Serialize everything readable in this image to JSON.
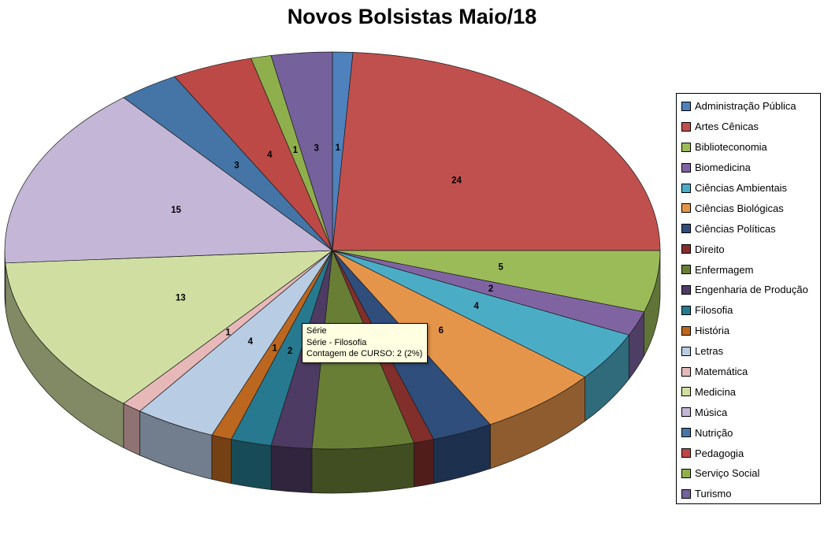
{
  "title": "Novos Bolsistas Maio/18",
  "chart_data": {
    "type": "pie",
    "title": "Novos Bolsistas Maio/18",
    "series_name": "Série",
    "value_label": "Contagem de CURSO",
    "total": 100,
    "legend_position": "right",
    "labels_shown": true,
    "style": "3d-pie",
    "slices": [
      {
        "label": "Administração Pública",
        "value": 1,
        "color": "#4F81BD"
      },
      {
        "label": "Artes Cênicas",
        "value": 24,
        "color": "#C0504D"
      },
      {
        "label": "Biblioteconomia",
        "value": 5,
        "color": "#9BBB59"
      },
      {
        "label": "Biomedicina",
        "value": 2,
        "color": "#8064A2"
      },
      {
        "label": "Ciências Ambientais",
        "value": 4,
        "color": "#4BACC6"
      },
      {
        "label": "Ciências Biológicas",
        "value": 6,
        "color": "#E5954A"
      },
      {
        "label": "Ciências Políticas",
        "value": 3,
        "color": "#2F4E7C"
      },
      {
        "label": "Direito",
        "value": 1,
        "color": "#822F2B"
      },
      {
        "label": "Enfermagem",
        "value": 5,
        "color": "#697E35"
      },
      {
        "label": "Engenharia de Produção",
        "value": 2,
        "color": "#4D3B63"
      },
      {
        "label": "Filosofia",
        "value": 2,
        "color": "#26798E"
      },
      {
        "label": "História",
        "value": 1,
        "color": "#BC671F"
      },
      {
        "label": "Letras",
        "value": 4,
        "color": "#B8CCE4"
      },
      {
        "label": "Matemática",
        "value": 1,
        "color": "#E6B9B8"
      },
      {
        "label": "Medicina",
        "value": 13,
        "color": "#D0DFA1"
      },
      {
        "label": "Música",
        "value": 15,
        "color": "#C3B6D6"
      },
      {
        "label": "Nutrição",
        "value": 3,
        "color": "#4575A7"
      },
      {
        "label": "Pedagogia",
        "value": 4,
        "color": "#BC4945"
      },
      {
        "label": "Serviço Social",
        "value": 1,
        "color": "#8FAF4D"
      },
      {
        "label": "Turismo",
        "value": 3,
        "color": "#75619C"
      }
    ]
  },
  "tooltip": {
    "line1": "Série",
    "line2": "Série - Filosofia",
    "line3": "Contagem de CURSO: 2 (2%)"
  }
}
